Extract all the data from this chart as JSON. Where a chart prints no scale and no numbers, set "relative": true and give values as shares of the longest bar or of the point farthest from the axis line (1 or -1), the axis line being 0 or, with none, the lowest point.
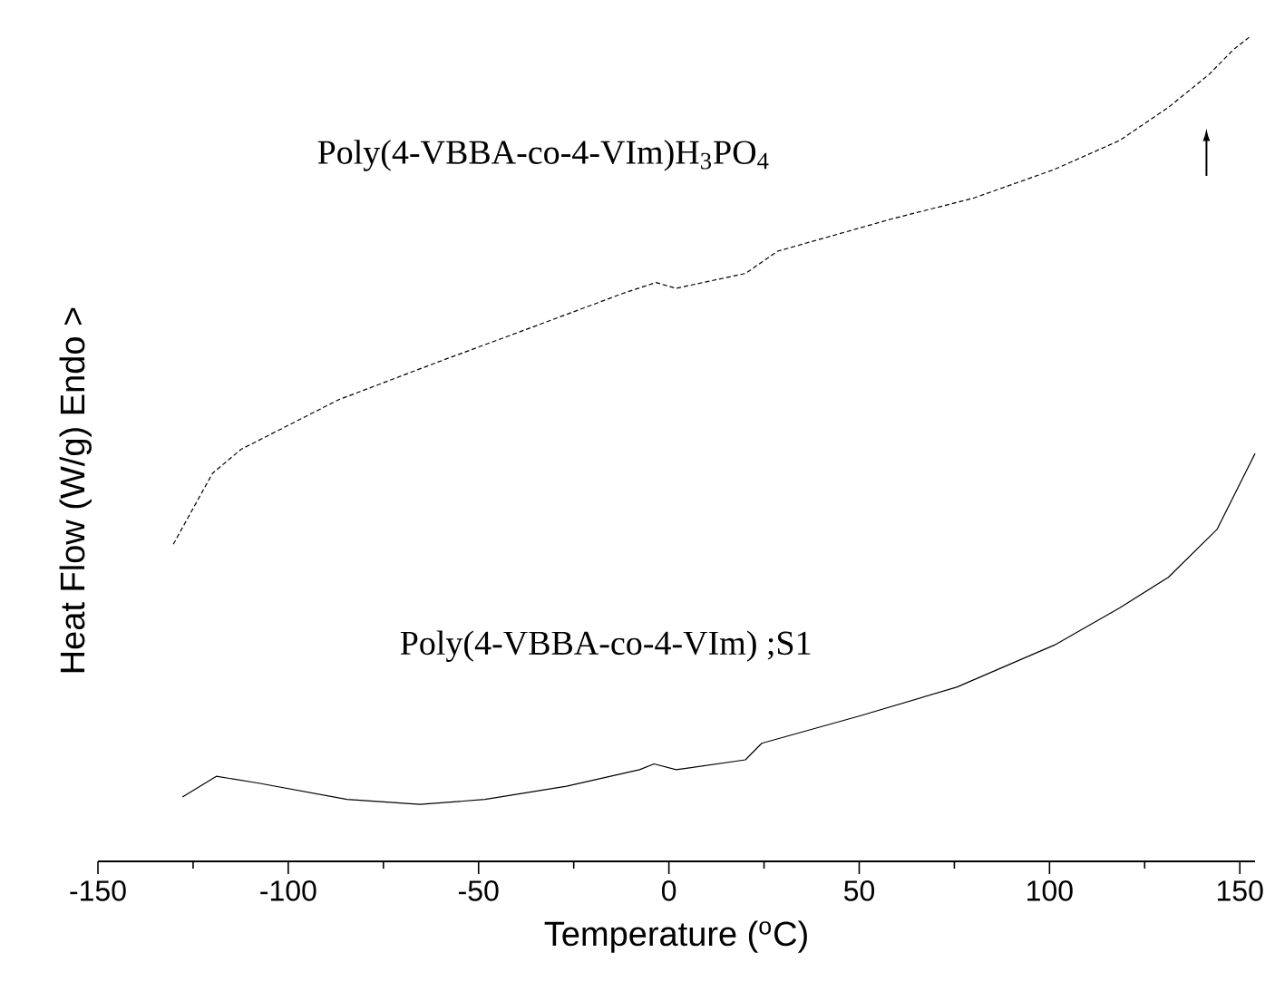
{
  "chart_data": {
    "type": "line",
    "xlabel": "Temperature  ($^{o}$C)",
    "ylabel": "Heat Flow (W/g) Endo >",
    "relative": true,
    "xlim": [
      -150,
      154
    ],
    "xticks": [
      -150,
      -100,
      -50,
      0,
      50,
      100,
      150
    ],
    "series": [
      {
        "name": "Poly(4-VBBA-co-4-VIm)H$_{3}$PO$_{4}$",
        "color": "#000000",
        "line_style": "dashed",
        "x": [
          -130.2,
          -119.9,
          -112.4,
          -86.8,
          -61.1,
          -37.6,
          -12.0,
          -3.4,
          1.9,
          20.1,
          28.6,
          58.5,
          79.9,
          101.3,
          118.4,
          131.2,
          141.9,
          148.3,
          153
        ],
        "values": [
          0.384,
          0.47,
          0.499,
          0.559,
          0.604,
          0.644,
          0.688,
          0.701,
          0.694,
          0.712,
          0.739,
          0.778,
          0.803,
          0.838,
          0.873,
          0.913,
          0.953,
          0.983,
          1.0
        ]
      },
      {
        "name": "Poly(4-VBBA-co-4-VIm) ;S1",
        "color": "#000000",
        "line_style": "solid",
        "x": [
          -127.8,
          -118.9,
          -108.1,
          -84.6,
          -65.4,
          -48.3,
          -26.9,
          -7.7,
          -3.9,
          1.9,
          20.1,
          24.4,
          50.0,
          75.6,
          101.3,
          118.4,
          131.2,
          144.0,
          154
        ],
        "values": [
          0.078,
          0.103,
          0.095,
          0.075,
          0.069,
          0.075,
          0.091,
          0.111,
          0.118,
          0.111,
          0.123,
          0.143,
          0.176,
          0.211,
          0.262,
          0.307,
          0.344,
          0.402,
          0.494
        ]
      }
    ]
  }
}
